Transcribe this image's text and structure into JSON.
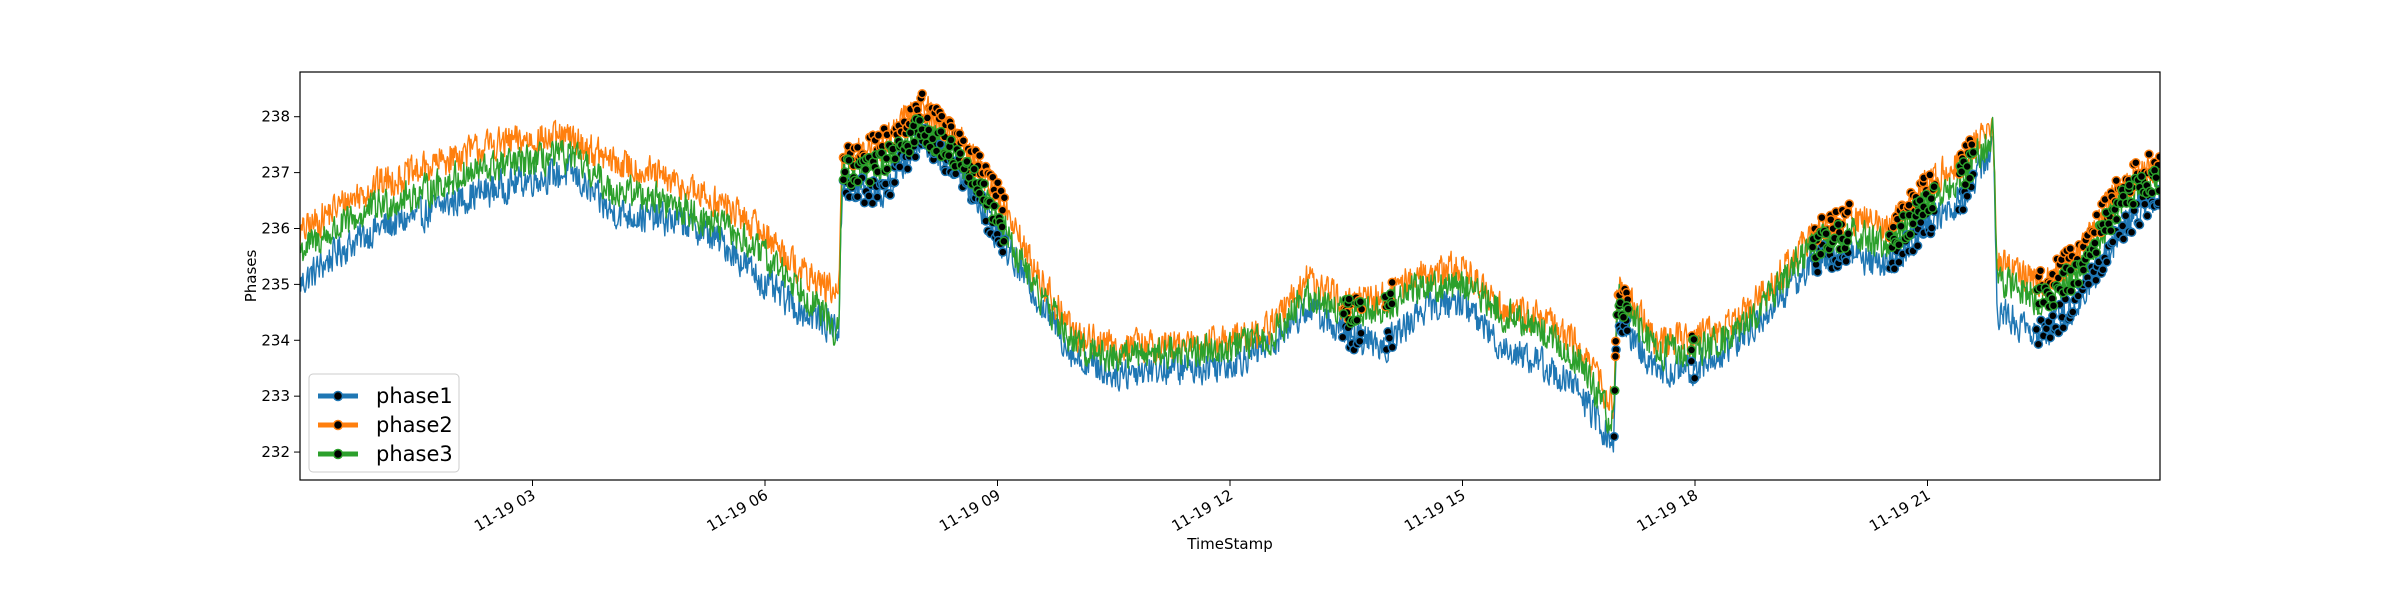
{
  "chart_data": {
    "type": "line",
    "title": "",
    "xlabel": "TimeStamp",
    "ylabel": "Phases",
    "xlim": [
      "2019-11-19 00:00",
      "2019-11-19 24:00"
    ],
    "ylim": [
      231.5,
      238.8
    ],
    "y_ticks": [
      232,
      233,
      234,
      235,
      236,
      237,
      238
    ],
    "x_ticks": [
      {
        "t": 3,
        "label": "11-19 03"
      },
      {
        "t": 6,
        "label": "11-19 06"
      },
      {
        "t": 9,
        "label": "11-19 09"
      },
      {
        "t": 12,
        "label": "11-19 12"
      },
      {
        "t": 15,
        "label": "11-19 15"
      },
      {
        "t": 18,
        "label": "11-19 18"
      },
      {
        "t": 21,
        "label": "11-19 21"
      }
    ],
    "grid": false,
    "legend_position": "lower-left",
    "series": [
      {
        "name": "phase1",
        "color": "#1f77b4",
        "x_hours": [
          0,
          0.5,
          1,
          1.5,
          2,
          2.5,
          3,
          3.5,
          4,
          4.5,
          5,
          5.5,
          6,
          6.5,
          6.95,
          7.0,
          7.5,
          8,
          8.5,
          9,
          9.5,
          10,
          10.5,
          11,
          11.5,
          12,
          12.5,
          13,
          13.5,
          14,
          14.5,
          15,
          15.5,
          16,
          16.5,
          16.95,
          17.0,
          17.5,
          18,
          18.5,
          19,
          19.5,
          20,
          20.5,
          21,
          21.5,
          21.85,
          21.9,
          22.5,
          23,
          23.5,
          24
        ],
        "y": [
          235.0,
          235.6,
          236.0,
          236.2,
          236.5,
          236.7,
          236.9,
          237.0,
          236.3,
          236.2,
          236.1,
          235.7,
          235.0,
          234.5,
          234.2,
          236.8,
          236.6,
          237.6,
          237.1,
          235.9,
          234.8,
          233.7,
          233.4,
          233.5,
          233.5,
          233.6,
          233.9,
          234.6,
          234.1,
          233.9,
          234.6,
          234.7,
          233.9,
          233.6,
          233.1,
          232.1,
          234.5,
          233.4,
          233.5,
          233.9,
          234.6,
          235.4,
          235.6,
          235.3,
          236.1,
          236.6,
          237.5,
          234.5,
          234.1,
          234.8,
          236.0,
          236.6
        ]
      },
      {
        "name": "phase2",
        "color": "#ff7f0e",
        "x_hours": [
          0,
          0.5,
          1,
          1.5,
          2,
          2.5,
          3,
          3.5,
          4,
          4.5,
          5,
          5.5,
          6,
          6.5,
          6.95,
          7.0,
          7.5,
          8,
          8.5,
          9,
          9.5,
          10,
          10.5,
          11,
          11.5,
          12,
          12.5,
          13,
          13.5,
          14,
          14.5,
          15,
          15.5,
          16,
          16.5,
          16.95,
          17.0,
          17.5,
          18,
          18.5,
          19,
          19.5,
          20,
          20.5,
          21,
          21.5,
          21.85,
          21.9,
          22.5,
          23,
          23.5,
          24
        ],
        "y": [
          235.9,
          236.4,
          236.8,
          237.0,
          237.3,
          237.5,
          237.6,
          237.6,
          237.2,
          237.0,
          236.7,
          236.4,
          235.9,
          235.2,
          234.8,
          237.3,
          237.5,
          238.2,
          237.6,
          236.6,
          235.2,
          234.1,
          233.9,
          233.9,
          233.9,
          234.0,
          234.2,
          235.1,
          234.6,
          234.8,
          235.2,
          235.3,
          234.6,
          234.4,
          233.9,
          232.8,
          235.0,
          234.0,
          234.0,
          234.3,
          235.0,
          235.9,
          236.2,
          236.0,
          236.8,
          237.3,
          237.8,
          235.4,
          235.0,
          235.6,
          236.8,
          237.2
        ]
      },
      {
        "name": "phase3",
        "color": "#2ca02c",
        "x_hours": [
          0,
          0.5,
          1,
          1.5,
          2,
          2.5,
          3,
          3.5,
          4,
          4.5,
          5,
          5.5,
          6,
          6.5,
          6.95,
          7.0,
          7.5,
          8,
          8.5,
          9,
          9.5,
          10,
          10.5,
          11,
          11.5,
          12,
          12.5,
          13,
          13.5,
          14,
          14.5,
          15,
          15.5,
          16,
          16.5,
          16.95,
          17.0,
          17.5,
          18,
          18.5,
          19,
          19.5,
          20,
          20.5,
          21,
          21.5,
          21.85,
          21.9,
          22.5,
          23,
          23.5,
          24
        ],
        "y": [
          235.6,
          236.0,
          236.4,
          236.6,
          236.9,
          237.1,
          237.2,
          237.3,
          236.7,
          236.6,
          236.3,
          236.0,
          235.5,
          234.9,
          234.1,
          237.0,
          237.1,
          237.8,
          237.3,
          236.2,
          234.9,
          233.9,
          233.7,
          233.8,
          233.8,
          233.9,
          234.0,
          234.8,
          234.5,
          234.6,
          235.0,
          235.0,
          234.5,
          234.2,
          233.6,
          232.5,
          234.8,
          233.8,
          233.8,
          234.1,
          234.8,
          235.7,
          235.9,
          235.7,
          236.5,
          237.0,
          237.7,
          235.1,
          234.7,
          235.3,
          236.5,
          236.9
        ]
      }
    ],
    "anomaly_markers": {
      "marker_color": "#000000",
      "hour_ranges": [
        [
          7.0,
          9.1
        ],
        [
          13.45,
          13.7
        ],
        [
          14.0,
          14.1
        ],
        [
          16.95,
          17.15
        ],
        [
          17.95,
          18.0
        ],
        [
          19.5,
          20.0
        ],
        [
          20.5,
          21.1
        ],
        [
          21.4,
          21.6
        ],
        [
          22.4,
          24.0
        ]
      ]
    }
  }
}
